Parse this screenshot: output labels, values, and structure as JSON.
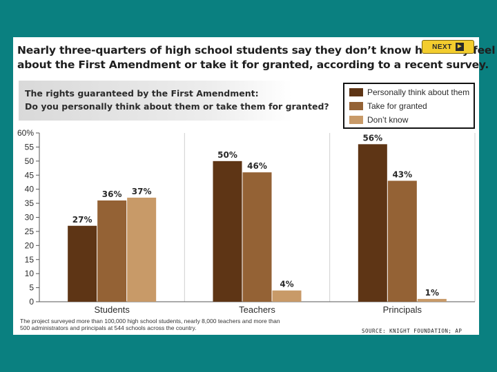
{
  "header": {
    "headline_line1": "Nearly three-quarters of high school students say they don’t know how they feel",
    "headline_line2": "about the First Amendment or take it for granted, according to a recent survey.",
    "next_label": "NEXT",
    "next_icon": "arrow-right-icon"
  },
  "question": {
    "line1": "The rights guaranteed by the First Amendment:",
    "line2": "Do you personally think about them or take them for granted?"
  },
  "colors": {
    "background": "#0a8080",
    "personally": "#5e3515",
    "granted": "#946235",
    "dont_know": "#c89a68"
  },
  "chart_data": {
    "type": "bar",
    "categories": [
      "Students",
      "Teachers",
      "Principals"
    ],
    "series": [
      {
        "name": "Personally think about them",
        "values": [
          27,
          50,
          56
        ],
        "labels": [
          "27%",
          "50%",
          "56%"
        ],
        "color": "#5e3515"
      },
      {
        "name": "Take for granted",
        "values": [
          36,
          46,
          43
        ],
        "labels": [
          "36%",
          "46%",
          "43%"
        ],
        "color": "#946235"
      },
      {
        "name": "Don’t know",
        "values": [
          37,
          4,
          1
        ],
        "labels": [
          "37%",
          "4%",
          "1%"
        ],
        "color": "#c89a68"
      }
    ],
    "ylim": [
      0,
      60
    ],
    "yticks": [
      {
        "value": 60,
        "label": "60%"
      },
      {
        "value": 55,
        "label": "55"
      },
      {
        "value": 50,
        "label": "50"
      },
      {
        "value": 45,
        "label": "45"
      },
      {
        "value": 40,
        "label": "40"
      },
      {
        "value": 35,
        "label": "35"
      },
      {
        "value": 30,
        "label": "30"
      },
      {
        "value": 25,
        "label": "25"
      },
      {
        "value": 20,
        "label": "20"
      },
      {
        "value": 15,
        "label": "15"
      },
      {
        "value": 10,
        "label": "10"
      },
      {
        "value": 5,
        "label": "5"
      },
      {
        "value": 0,
        "label": "0"
      }
    ],
    "grid": true,
    "legend_position": "top-right"
  },
  "footnote": {
    "line1": "The project surveyed more than 100,000 high school students, nearly 8,000 teachers and more than",
    "line2": "500 administrators and principals at 544 schools across the country."
  },
  "source": "SOURCE: KNIGHT FOUNDATION; AP"
}
